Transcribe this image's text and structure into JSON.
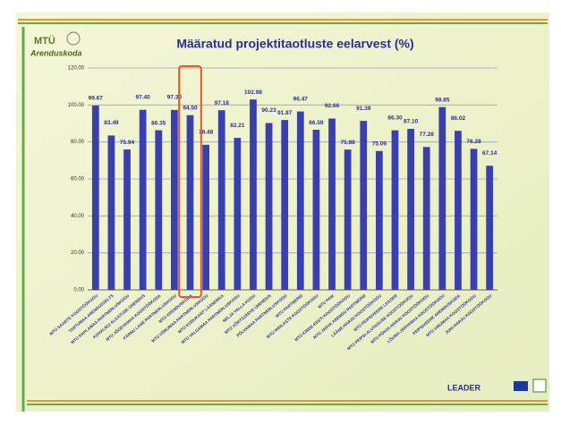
{
  "logo": {
    "line1": "MTÜ",
    "line2": "Arenduskoda"
  },
  "footer": {
    "brand": "LEADER"
  },
  "chart_data": {
    "type": "bar",
    "title": "Määratud projektitaotluste eelarvest (%)",
    "categories": [
      "MTÜ SAARTE KOOSTÖÖKOGU",
      "TARTUMAA ARENDUSSELTS",
      "MTÜ RAPLAMAA PARTNERLUSKOGU",
      "KOHALIKU ALGATUSE ÜHENDUS",
      "MTÜ JÕGEVAMAA KOOSTÖÖKODA",
      "PÄRNU LAHE PARTNERLUSKOGU",
      "MTÜ ARENDUSKODA",
      "MTÜ VÕRUMAA PARTNERLUSKOGU",
      "MTÜ KODUKANT LÄÄNEMAA",
      "MTÜ VALGAMAA PARTNERLUSKOGU",
      "NELJA VALLA KOGU",
      "MTÜ VÕRTSJÄRVE ÜHENDUS",
      "PÕLVAMAA PARTNERLUSKOGU",
      "MTÜ PARTNERID",
      "MTÜ HIIDLASTE KOOSTÖÖKOGU",
      "MTÜ PAIK",
      "MTÜ KIRDE-EESTI KOOSTÖÖKOGU",
      "MTÜ JÄRVA ARENGU PARTNERID",
      "LÄÄNE-HARJU KOOSTÖÖKOGU",
      "MTÜ PEIPSIVEERE LEADER",
      "MTÜ PEIPSI-ALUTAGUSE KOOSTÖÖKOGU",
      "MTÜ PÕHJA-HARJU KOOSTÖÖKOGU",
      "LÕUNA-JÄRVAMAA KOOSTÖÖKOGU",
      "PEIPSIVEERE ARENDUSKODA",
      "MTÜ VIRUMAA KOOSTÖÖKOGU",
      "JUHI-HARJU KOOSTÖÖKOGU"
    ],
    "values": [
      99.67,
      83.49,
      75.94,
      97.4,
      86.35,
      97.3,
      94.5,
      78.48,
      97.18,
      82.21,
      102.98,
      90.23,
      91.87,
      96.47,
      86.59,
      92.66,
      75.88,
      91.39,
      75.09,
      86.3,
      87.1,
      77.28,
      98.85,
      86.02,
      76.28,
      67.14
    ],
    "value_labels": [
      "99.67",
      "83.49",
      "75.94",
      "97.40",
      "86.35",
      "97.30",
      "94.50",
      "78.48",
      "97.18",
      "82.21",
      "102.98",
      "90.23",
      "91.87",
      "96.47",
      "86.59",
      "92.66",
      "75.88",
      "91.39",
      "75.09",
      "86.30",
      "87.10",
      "77.28",
      "98.85",
      "86.02",
      "76.28",
      "67.14"
    ],
    "color": "#3a3fae",
    "highlight": 6,
    "ylim": [
      0,
      120
    ],
    "yticks": [
      {
        "value": 0,
        "label": "0.00"
      },
      {
        "value": 20,
        "label": "20.00"
      },
      {
        "value": 40,
        "label": "40.00"
      },
      {
        "value": 60,
        "label": "60.00"
      },
      {
        "value": 80,
        "label": "80.00"
      },
      {
        "value": 100,
        "label": "100.00"
      },
      {
        "value": 120,
        "label": "120.00"
      }
    ],
    "grid": true
  }
}
